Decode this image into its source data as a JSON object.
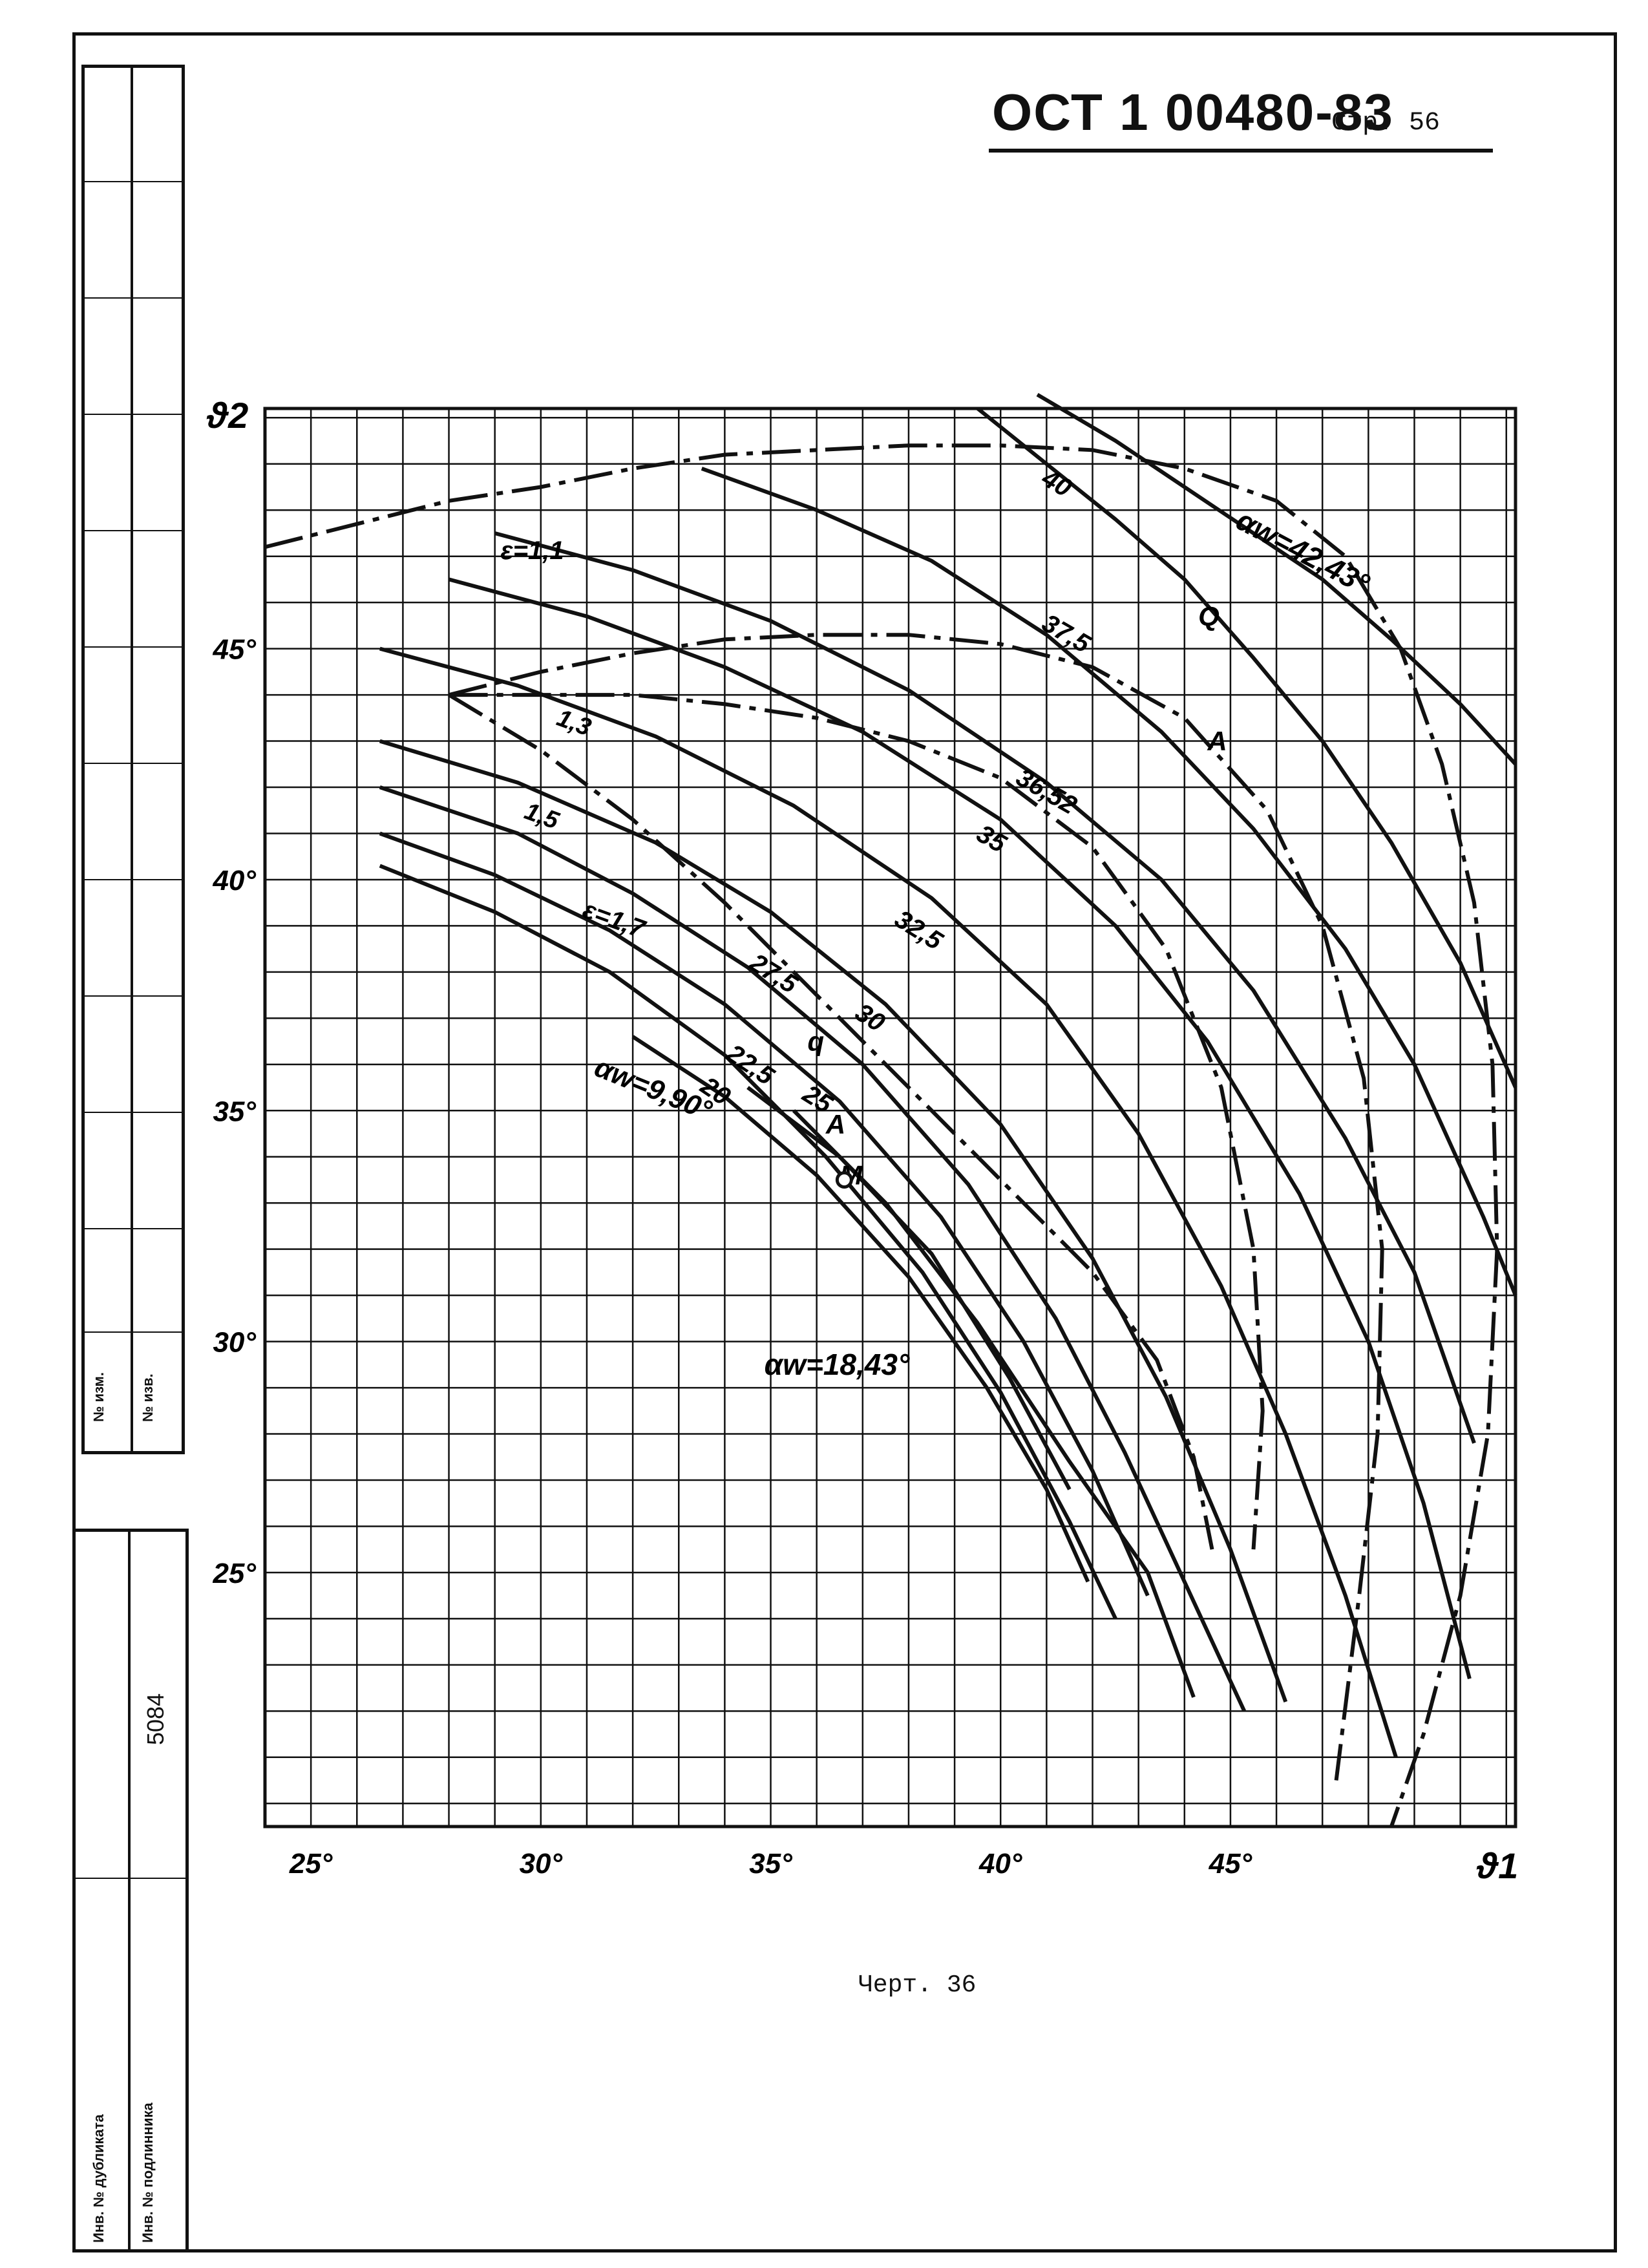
{
  "header": {
    "standard": "ОСТ 1 00480-83",
    "page": "Стр. 56"
  },
  "caption": "Черт. 36",
  "side_stamp": {
    "inventory_no": "5084",
    "labels": [
      "№ изм.",
      "№ изв.",
      "Инв. № дубликата",
      "Инв. № подлинника"
    ]
  },
  "chart_data": {
    "type": "line",
    "title": "",
    "xlabel": "ϑ1",
    "ylabel": "ϑ2",
    "xlim": [
      24,
      51.2
    ],
    "ylim": [
      19.5,
      50.2
    ],
    "grid": true,
    "x_ticks": [
      25,
      30,
      35,
      40,
      45
    ],
    "y_ticks": [
      25,
      30,
      35,
      40,
      45
    ],
    "x_tick_labels": [
      "25°",
      "30°",
      "35°",
      "40°",
      "45°"
    ],
    "y_tick_labels": [
      "25°",
      "30°",
      "35°",
      "40°",
      "45°"
    ],
    "alpha_w_curves": [
      {
        "label": "αw=42,43°",
        "points": [
          [
            40.8,
            50.5
          ],
          [
            42.5,
            49.5
          ],
          [
            44,
            48.5
          ],
          [
            45.5,
            47.5
          ],
          [
            47,
            46.5
          ],
          [
            48.5,
            45.2
          ],
          [
            50,
            43.8
          ],
          [
            51.2,
            42.5
          ]
        ]
      },
      {
        "label": "40",
        "points": [
          [
            39.5,
            50.2
          ],
          [
            41,
            49
          ],
          [
            42.5,
            47.8
          ],
          [
            44,
            46.5
          ],
          [
            45.5,
            44.8
          ],
          [
            47,
            43
          ],
          [
            48.5,
            40.8
          ],
          [
            50,
            38.2
          ],
          [
            51.2,
            35.5
          ]
        ]
      },
      {
        "label": "37,5",
        "points": [
          [
            33.5,
            48.9
          ],
          [
            36,
            48
          ],
          [
            38.5,
            46.9
          ],
          [
            41,
            45.3
          ],
          [
            43.5,
            43.2
          ],
          [
            45.5,
            41.1
          ],
          [
            47.5,
            38.5
          ],
          [
            49,
            36
          ],
          [
            50.5,
            32.7
          ],
          [
            51.2,
            31
          ]
        ]
      },
      {
        "label": "36,52",
        "points": [
          [
            29,
            47.5
          ],
          [
            32,
            46.7
          ],
          [
            35,
            45.6
          ],
          [
            38,
            44.1
          ],
          [
            41,
            42.1
          ],
          [
            43.5,
            40
          ],
          [
            45.5,
            37.6
          ],
          [
            47.5,
            34.4
          ],
          [
            49,
            31.5
          ],
          [
            50.3,
            27.8
          ]
        ]
      },
      {
        "label": "35",
        "points": [
          [
            28,
            46.5
          ],
          [
            31,
            45.7
          ],
          [
            34,
            44.6
          ],
          [
            37,
            43.2
          ],
          [
            40,
            41.3
          ],
          [
            42.5,
            39
          ],
          [
            44.5,
            36.5
          ],
          [
            46.5,
            33.2
          ],
          [
            48,
            30
          ],
          [
            49.2,
            26.5
          ],
          [
            50.2,
            22.7
          ]
        ]
      },
      {
        "label": "32,5",
        "points": [
          [
            26.5,
            45
          ],
          [
            29.5,
            44.2
          ],
          [
            32.5,
            43.1
          ],
          [
            35.5,
            41.6
          ],
          [
            38.5,
            39.6
          ],
          [
            41,
            37.3
          ],
          [
            43,
            34.5
          ],
          [
            44.8,
            31.2
          ],
          [
            46.2,
            28
          ],
          [
            47.5,
            24.5
          ],
          [
            48.6,
            21
          ]
        ]
      },
      {
        "label": "30",
        "points": [
          [
            26.5,
            43
          ],
          [
            29.5,
            42.1
          ],
          [
            32.5,
            40.8
          ],
          [
            35,
            39.3
          ],
          [
            37.5,
            37.3
          ],
          [
            40,
            34.7
          ],
          [
            42,
            31.8
          ],
          [
            43.6,
            28.8
          ],
          [
            45,
            25.5
          ],
          [
            46.2,
            22.2
          ]
        ]
      },
      {
        "label": "27,5",
        "points": [
          [
            26.5,
            42
          ],
          [
            29.5,
            41
          ],
          [
            32,
            39.7
          ],
          [
            34.5,
            38.1
          ],
          [
            37,
            36
          ],
          [
            39.3,
            33.4
          ],
          [
            41.2,
            30.5
          ],
          [
            42.7,
            27.6
          ],
          [
            44,
            24.8
          ],
          [
            45.3,
            22
          ]
        ]
      },
      {
        "label": "25",
        "points": [
          [
            26.5,
            41
          ],
          [
            29,
            40.1
          ],
          [
            31.5,
            38.9
          ],
          [
            34,
            37.3
          ],
          [
            36.5,
            35.2
          ],
          [
            38.7,
            32.7
          ],
          [
            40.5,
            30
          ],
          [
            42,
            27.2
          ],
          [
            43.2,
            24.5
          ]
        ]
      },
      {
        "label": "22,5",
        "points": [
          [
            26.5,
            40.3
          ],
          [
            29,
            39.3
          ],
          [
            31.5,
            38
          ],
          [
            34,
            36.2
          ],
          [
            36.2,
            34
          ],
          [
            38.3,
            31.5
          ],
          [
            40,
            28.9
          ],
          [
            41.5,
            26.1
          ],
          [
            42.5,
            24
          ]
        ]
      },
      {
        "label": "20",
        "points": [
          [
            32,
            36.6
          ],
          [
            34,
            35.3
          ],
          [
            36,
            33.6
          ],
          [
            38,
            31.4
          ],
          [
            39.7,
            29
          ],
          [
            41,
            26.8
          ],
          [
            41.9,
            24.8
          ]
        ]
      },
      {
        "label": "αw=9,90°",
        "points": [
          [
            34.5,
            35.5
          ],
          [
            36.5,
            34
          ],
          [
            38.5,
            31.9
          ],
          [
            40.2,
            29.2
          ],
          [
            41.5,
            26.8
          ]
        ]
      },
      {
        "label": "αw=18,43°",
        "points": [
          [
            35.5,
            35
          ],
          [
            37.5,
            33
          ],
          [
            39.5,
            30.4
          ],
          [
            41.5,
            27.4
          ],
          [
            43.2,
            25
          ],
          [
            44.2,
            22.3
          ]
        ]
      }
    ],
    "epsilon_curves": [
      {
        "label": "ε=1,1",
        "points": [
          [
            24,
            47.2
          ],
          [
            26,
            47.7
          ],
          [
            28,
            48.2
          ],
          [
            30,
            48.5
          ],
          [
            32,
            48.9
          ],
          [
            34,
            49.2
          ],
          [
            36,
            49.3
          ],
          [
            38,
            49.4
          ],
          [
            40,
            49.4
          ],
          [
            42,
            49.3
          ],
          [
            44,
            48.9
          ],
          [
            46,
            48.2
          ],
          [
            47.5,
            47
          ],
          [
            48.7,
            45
          ],
          [
            49.6,
            42.5
          ],
          [
            50.3,
            39.5
          ],
          [
            50.7,
            36
          ],
          [
            50.8,
            32
          ],
          [
            50.6,
            28
          ],
          [
            50,
            24.5
          ],
          [
            49.2,
            21.5
          ],
          [
            48.5,
            19.5
          ]
        ]
      },
      {
        "label": "1,3",
        "points": [
          [
            28,
            44
          ],
          [
            30,
            44.5
          ],
          [
            32,
            44.9
          ],
          [
            34,
            45.2
          ],
          [
            36,
            45.3
          ],
          [
            38,
            45.3
          ],
          [
            40,
            45.1
          ],
          [
            42,
            44.6
          ],
          [
            44,
            43.5
          ],
          [
            45.8,
            41.5
          ],
          [
            47,
            39
          ],
          [
            47.9,
            35.7
          ],
          [
            48.3,
            32
          ],
          [
            48.2,
            28
          ],
          [
            47.8,
            24.5
          ],
          [
            47.3,
            20.5
          ]
        ]
      },
      {
        "label": "1,5",
        "points": [
          [
            28,
            44
          ],
          [
            30,
            44
          ],
          [
            32,
            44
          ],
          [
            34,
            43.8
          ],
          [
            36,
            43.5
          ],
          [
            38,
            43
          ],
          [
            40,
            42.2
          ],
          [
            42,
            40.7
          ],
          [
            43.6,
            38.5
          ],
          [
            44.8,
            35.5
          ],
          [
            45.5,
            32
          ],
          [
            45.7,
            28.5
          ],
          [
            45.5,
            25.5
          ]
        ]
      },
      {
        "label": "ε=1,7",
        "points": [
          [
            28,
            44
          ],
          [
            30,
            42.8
          ],
          [
            32,
            41.3
          ],
          [
            34,
            39.5
          ],
          [
            36,
            37.5
          ],
          [
            38,
            35.5
          ],
          [
            40,
            33.5
          ],
          [
            42,
            31.5
          ],
          [
            43.4,
            29.6
          ],
          [
            44.2,
            27.5
          ],
          [
            44.6,
            25.5
          ]
        ]
      }
    ],
    "annotations": [
      "Q",
      "A",
      "q",
      "A",
      "M"
    ],
    "color": "#111111"
  }
}
